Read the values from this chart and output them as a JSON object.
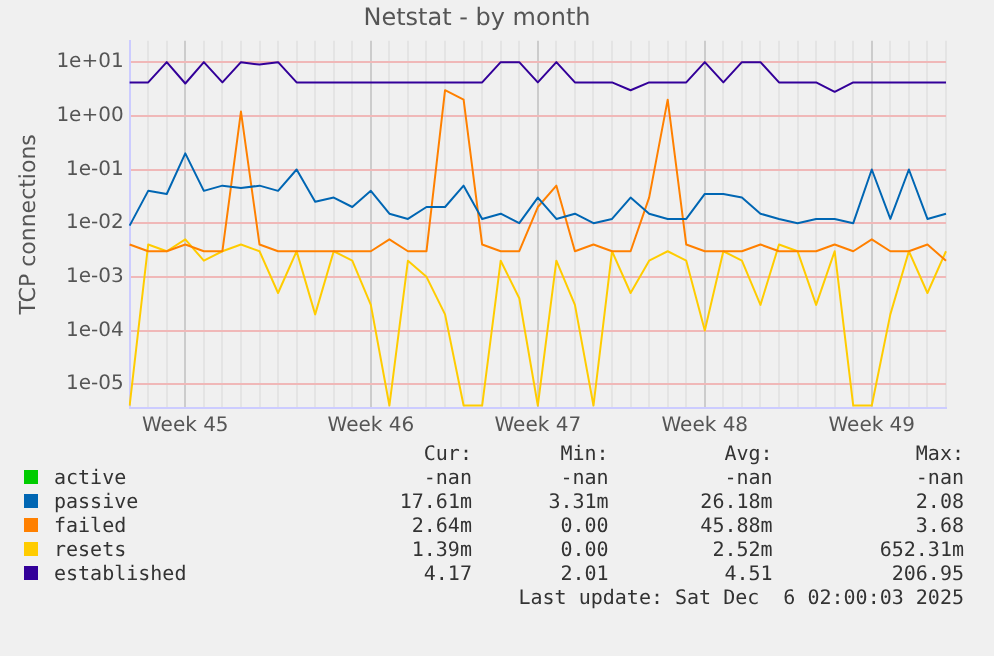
{
  "chart_data": {
    "type": "line",
    "title": "Netstat - by month",
    "ylabel": "TCP connections",
    "log": "y",
    "grid": true,
    "legend": "bottom",
    "categories": [
      null,
      null,
      null,
      "Week 45",
      null,
      null,
      null,
      null,
      null,
      null,
      null,
      null,
      null,
      "Week 46",
      null,
      null,
      null,
      null,
      null,
      null,
      null,
      null,
      "Week 47",
      null,
      null,
      null,
      null,
      null,
      null,
      null,
      null,
      "Week 48",
      null,
      null,
      null,
      null,
      null,
      null,
      null,
      null,
      "Week 49",
      null,
      null,
      null,
      null
    ],
    "ylim": [
      3.6e-06,
      25
    ],
    "yticks": [
      {
        "value": 10,
        "label": "1e+01"
      },
      {
        "value": 1,
        "label": "1e+00"
      },
      {
        "value": 0.1,
        "label": "1e-01"
      },
      {
        "value": 0.01,
        "label": "1e-02"
      },
      {
        "value": 0.001,
        "label": "1e-03"
      },
      {
        "value": 0.0001,
        "label": "1e-04"
      },
      {
        "value": 1e-05,
        "label": "1e-05"
      }
    ],
    "series": [
      {
        "name": "active",
        "color": "#00cc00",
        "values": [
          null,
          null,
          null,
          null,
          null,
          null,
          null,
          null,
          null,
          null,
          null,
          null,
          null,
          null,
          null,
          null,
          null,
          null,
          null,
          null,
          null,
          null,
          null,
          null,
          null,
          null,
          null,
          null,
          null,
          null,
          null,
          null,
          null,
          null,
          null,
          null,
          null,
          null,
          null,
          null,
          null,
          null,
          null,
          null,
          null
        ]
      },
      {
        "name": "passive",
        "color": "#0066b3",
        "values": [
          0.009,
          0.04,
          0.035,
          0.2,
          0.04,
          0.05,
          0.045,
          0.05,
          0.04,
          0.1,
          0.025,
          0.03,
          0.02,
          0.04,
          0.015,
          0.012,
          0.02,
          0.02,
          0.05,
          0.012,
          0.015,
          0.01,
          0.03,
          0.012,
          0.015,
          0.01,
          0.012,
          0.03,
          0.015,
          0.012,
          0.012,
          0.035,
          0.035,
          0.03,
          0.015,
          0.012,
          0.01,
          0.012,
          0.012,
          0.01,
          0.1,
          0.012,
          0.1,
          0.012,
          0.015
        ]
      },
      {
        "name": "failed",
        "color": "#ff8000",
        "values": [
          0.004,
          0.003,
          0.003,
          0.004,
          0.003,
          0.003,
          1.2,
          0.004,
          0.003,
          0.003,
          0.003,
          0.003,
          0.003,
          0.003,
          0.005,
          0.003,
          0.003,
          3,
          2,
          0.004,
          0.003,
          0.003,
          0.02,
          0.05,
          0.003,
          0.004,
          0.003,
          0.003,
          0.03,
          2,
          0.004,
          0.003,
          0.003,
          0.003,
          0.004,
          0.003,
          0.003,
          0.003,
          0.004,
          0.003,
          0.005,
          0.003,
          0.003,
          0.004,
          0.002
        ]
      },
      {
        "name": "resets",
        "color": "#ffcc00",
        "values": [
          4e-06,
          0.004,
          0.003,
          0.005,
          0.002,
          0.003,
          0.004,
          0.003,
          0.0005,
          0.003,
          0.0002,
          0.003,
          0.002,
          0.0003,
          4e-06,
          0.002,
          0.001,
          0.0002,
          4e-06,
          4e-06,
          0.002,
          0.0004,
          4e-06,
          0.002,
          0.0003,
          4e-06,
          0.003,
          0.0005,
          0.002,
          0.003,
          0.002,
          0.0001,
          0.003,
          0.002,
          0.0003,
          0.004,
          0.003,
          0.0003,
          0.003,
          4e-06,
          4e-06,
          0.0002,
          0.003,
          0.0005,
          0.003
        ]
      },
      {
        "name": "established",
        "color": "#330099",
        "values": [
          4.2,
          4.2,
          10,
          4,
          10,
          4.2,
          10,
          9,
          10,
          4.2,
          4.2,
          4.2,
          4.2,
          4.2,
          4.2,
          4.2,
          4.2,
          4.2,
          4.2,
          4.2,
          10,
          10,
          4.2,
          10,
          4.2,
          4.2,
          4.2,
          3,
          4.2,
          4.2,
          4.2,
          10,
          4.2,
          10,
          10,
          4.2,
          4.2,
          4.2,
          2.8,
          4.2,
          4.2,
          4.2,
          4.2,
          4.2,
          4.2
        ]
      }
    ],
    "annotations": [
      "Cur:",
      "Min:",
      "Avg:",
      "Max:",
      "-nan",
      "-nan",
      "-nan",
      "-nan",
      "17.61m",
      "3.31m",
      "26.18m",
      "2.08",
      "2.64m",
      "0.00",
      "45.88m",
      "3.68",
      "1.39m",
      "0.00",
      "2.52m",
      "652.31m",
      "4.17",
      "2.01",
      "4.51",
      "206.95",
      "Last update: Sat Dec  6 02:00:03 2025"
    ]
  }
}
